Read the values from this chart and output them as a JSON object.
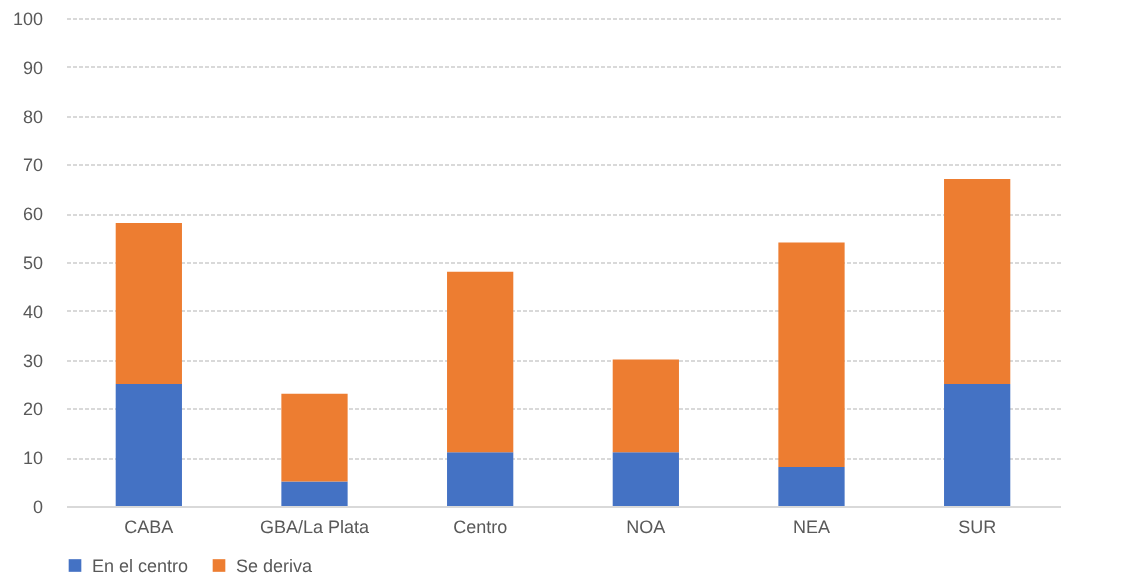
{
  "chart_data": {
    "type": "bar",
    "stacked": true,
    "categories": [
      "CABA",
      "GBA/La Plata",
      "Centro",
      "NOA",
      "NEA",
      "SUR"
    ],
    "series": [
      {
        "name": "En el centro",
        "color": "#4472c4",
        "values": [
          25,
          5,
          11,
          11,
          8,
          25
        ]
      },
      {
        "name": "Se deriva",
        "color": "#ed7d31",
        "values": [
          33,
          18,
          37,
          19,
          46,
          42
        ]
      }
    ],
    "ylim": [
      0,
      100
    ],
    "yticks": [
      0,
      10,
      20,
      30,
      40,
      50,
      60,
      70,
      80,
      90,
      100
    ],
    "grid": "y",
    "legend": "bottom"
  }
}
